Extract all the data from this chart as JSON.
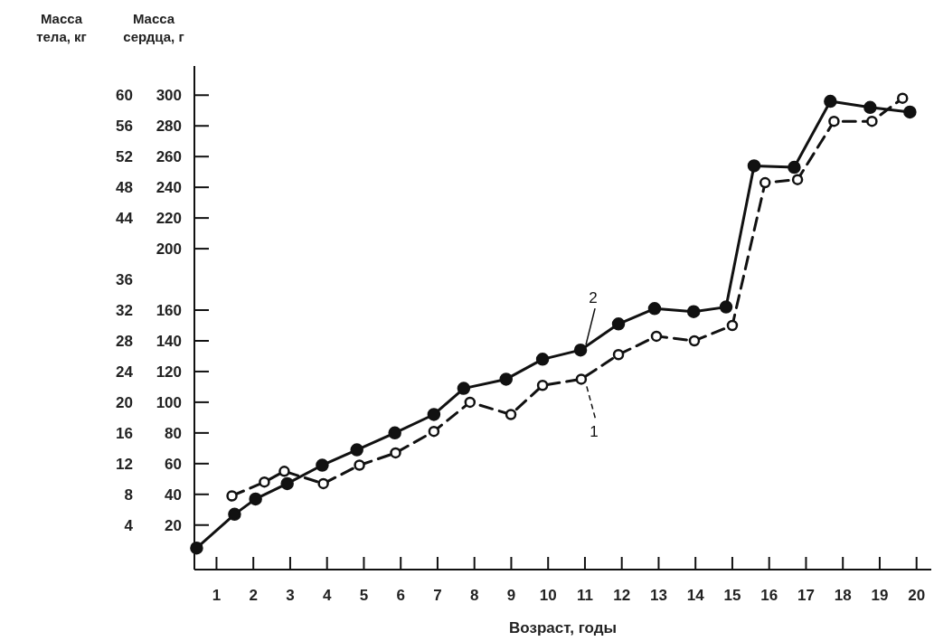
{
  "chart_data": {
    "type": "line",
    "xlabel": "Возраст, годы",
    "ylabel": "Масса сердца, г",
    "y2label": "Масса тела, кг",
    "xlim": [
      0.4,
      20.4
    ],
    "xticks": [
      1,
      2,
      3,
      4,
      5,
      6,
      7,
      8,
      9,
      10,
      11,
      12,
      13,
      14,
      15,
      16,
      17,
      18,
      19,
      20
    ],
    "ylim": [
      -9,
      319
    ],
    "yticks": [
      20,
      40,
      60,
      80,
      100,
      120,
      140,
      160,
      200,
      220,
      240,
      260,
      280,
      300
    ],
    "y2lim": [
      -1.8,
      63.8
    ],
    "y2ticks": [
      4,
      8,
      12,
      16,
      20,
      24,
      28,
      32,
      36,
      44,
      48,
      52,
      56,
      60
    ],
    "series": [
      {
        "name": "2",
        "color": "#111111",
        "marker": "circle",
        "line_style": "solid",
        "x": [
          0.46,
          1.49,
          2.06,
          2.92,
          3.87,
          4.81,
          5.84,
          6.9,
          7.71,
          8.86,
          9.85,
          10.88,
          11.91,
          12.89,
          13.95,
          14.83,
          15.59,
          16.68,
          17.66,
          18.74,
          19.82
        ],
        "values": [
          5,
          27,
          37,
          47,
          59,
          69,
          80,
          92,
          109,
          115,
          128,
          134,
          151,
          161,
          159,
          162,
          254,
          253,
          296,
          292,
          289
        ]
      },
      {
        "name": "1",
        "color": "#111111",
        "marker": "circle",
        "line_style": "dashed",
        "x": [
          1.42,
          2.3,
          2.84,
          3.9,
          4.88,
          5.86,
          6.9,
          7.88,
          8.99,
          9.85,
          10.9,
          11.91,
          12.94,
          13.97,
          15.0,
          15.89,
          16.77,
          17.76,
          18.79,
          19.62
        ],
        "values": [
          39,
          48,
          55,
          47,
          59,
          67,
          81,
          100,
          92,
          111,
          115,
          131,
          143,
          140,
          150,
          243,
          245,
          283,
          283,
          298
        ]
      }
    ]
  }
}
